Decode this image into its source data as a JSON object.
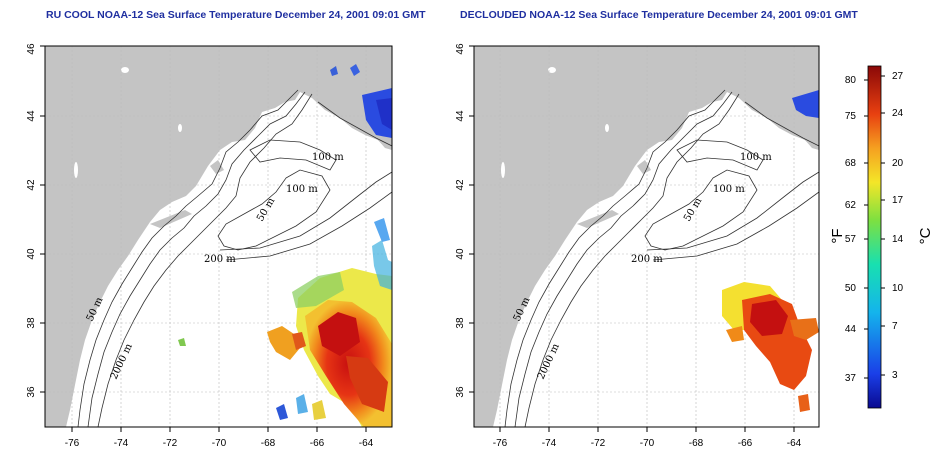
{
  "panels": [
    {
      "id": "rucool",
      "title": "RU COOL NOAA-12 Sea Surface Temperature December 24, 2001 09:01 GMT"
    },
    {
      "id": "declouded",
      "title": "DECLOUDED NOAA-12 Sea Surface Temperature December 24, 2001 09:01 GMT"
    }
  ],
  "axes": {
    "lon_ticks": [
      "-76",
      "-74",
      "-72",
      "-70",
      "-68",
      "-66",
      "-64"
    ],
    "lat_ticks": [
      "36",
      "38",
      "40",
      "42",
      "44",
      "46"
    ]
  },
  "contour_labels": {
    "m100_a": "100 m",
    "m100_b": "100 m",
    "m50_gom": "50 m",
    "m200": "200 m",
    "m50_shelf": "50 m",
    "m2000": "2000 m"
  },
  "colorbar": {
    "unit_f": "°F",
    "unit_c": "°C",
    "f_ticks": [
      "80",
      "75",
      "68",
      "62",
      "57",
      "50",
      "44",
      "37"
    ],
    "c_ticks": [
      "27",
      "24",
      "20",
      "17",
      "14",
      "10",
      "7",
      "3"
    ]
  },
  "colors": {
    "title": "#1f2fa0",
    "land": "#c4c4c4",
    "ocean": "#ffffff",
    "grid": "#bbbbbb"
  }
}
